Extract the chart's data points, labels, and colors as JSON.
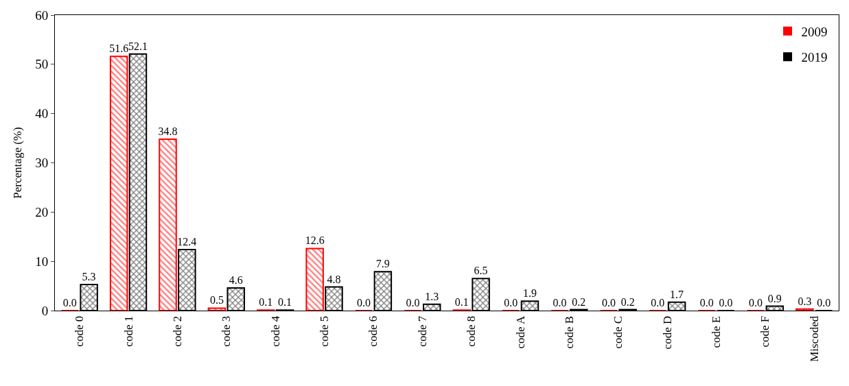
{
  "chart_data": {
    "type": "bar",
    "ylabel": "Percentage (%)",
    "categories": [
      "code 0",
      "code 1",
      "code 2",
      "code 3",
      "code 4",
      "code 5",
      "code 6",
      "code 7",
      "code 8",
      "code A",
      "code B",
      "code C",
      "code D",
      "code E",
      "code F",
      "Miscoded"
    ],
    "series": [
      {
        "name": "2009",
        "color": "#ff0000",
        "values": [
          0.0,
          51.6,
          34.8,
          0.5,
          0.1,
          12.6,
          0.0,
          0.0,
          0.1,
          0.0,
          0.0,
          0.0,
          0.0,
          0.0,
          0.0,
          0.3
        ],
        "value_labels": [
          "0.0",
          "51.6",
          "34.8",
          "0.5",
          "0.1",
          "12.6",
          "0.0",
          "0.0",
          "0.1",
          "0.0",
          "0.0",
          "0.0",
          "0.0",
          "0.0",
          "0.0",
          "0.3"
        ]
      },
      {
        "name": "2019",
        "color": "#000000",
        "values": [
          5.3,
          52.1,
          12.4,
          4.6,
          0.1,
          4.8,
          7.9,
          1.3,
          6.5,
          1.9,
          0.2,
          0.2,
          1.7,
          0.0,
          0.9,
          0.0
        ],
        "value_labels": [
          "5.3",
          "52.1",
          "12.4",
          "4.6",
          "0.1",
          "4.8",
          "7.9",
          "1.3",
          "6.5",
          "1.9",
          "0.2",
          "0.2",
          "1.7",
          "0.0",
          "0.9",
          "0.0"
        ]
      }
    ],
    "ylim": [
      0,
      60
    ],
    "yticks": [
      0,
      10,
      20,
      30,
      40,
      50,
      60
    ],
    "grid": false,
    "legend": "top right"
  }
}
